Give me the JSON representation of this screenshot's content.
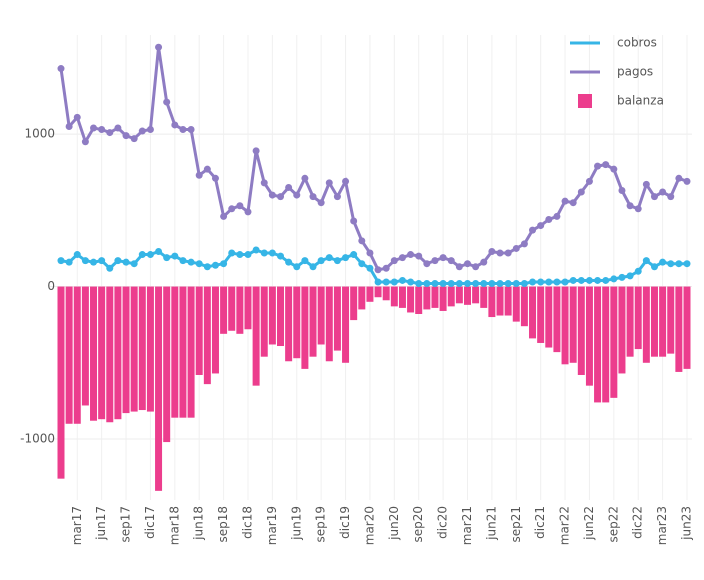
{
  "chart_data": {
    "type": "combo",
    "categories": [
      null,
      null,
      "mar17",
      null,
      null,
      "jun17",
      null,
      null,
      "sep17",
      null,
      null,
      "dic17",
      null,
      null,
      "mar18",
      null,
      null,
      "jun18",
      null,
      null,
      "sep18",
      null,
      null,
      "dic18",
      null,
      null,
      "mar19",
      null,
      null,
      "jun19",
      null,
      null,
      "sep19",
      null,
      null,
      "dic19",
      null,
      null,
      "mar20",
      null,
      null,
      "jun20",
      null,
      null,
      "sep20",
      null,
      null,
      "dic20",
      null,
      null,
      "mar21",
      null,
      null,
      "jun21",
      null,
      null,
      "sep21",
      null,
      null,
      "dic21",
      null,
      null,
      "mar22",
      null,
      null,
      "jun22",
      null,
      null,
      "sep22",
      null,
      null,
      "dic22",
      null,
      null,
      "mar23",
      null,
      null,
      "jun23"
    ],
    "series": [
      {
        "name": "cobros",
        "type": "line",
        "color": "#36b5e6",
        "values": [
          170,
          160,
          210,
          170,
          160,
          170,
          120,
          170,
          160,
          150,
          210,
          210,
          230,
          190,
          200,
          170,
          160,
          150,
          130,
          140,
          150,
          220,
          210,
          210,
          240,
          220,
          220,
          200,
          160,
          130,
          170,
          130,
          170,
          190,
          170,
          190,
          210,
          150,
          120,
          30,
          30,
          30,
          40,
          30,
          20,
          20,
          20,
          20,
          20,
          20,
          20,
          20,
          20,
          20,
          20,
          20,
          20,
          20,
          30,
          30,
          30,
          30,
          30,
          40,
          40,
          40,
          40,
          40,
          50,
          60,
          70,
          100,
          170,
          130,
          160,
          150,
          150,
          150
        ]
      },
      {
        "name": "pagos",
        "type": "line",
        "color": "#8e7cc3",
        "values": [
          1430,
          1050,
          1110,
          950,
          1040,
          1030,
          1010,
          1040,
          990,
          970,
          1020,
          1030,
          1570,
          1210,
          1060,
          1030,
          1030,
          730,
          770,
          710,
          460,
          510,
          530,
          490,
          890,
          680,
          600,
          590,
          650,
          600,
          710,
          590,
          550,
          680,
          590,
          690,
          430,
          300,
          220,
          110,
          120,
          170,
          190,
          210,
          200,
          150,
          170,
          190,
          170,
          130,
          150,
          130,
          160,
          230,
          220,
          220,
          250,
          280,
          370,
          400,
          440,
          460,
          560,
          550,
          620,
          690,
          790,
          800,
          770,
          630,
          530,
          510,
          670,
          590,
          620,
          590,
          710,
          690
        ]
      },
      {
        "name": "balanza",
        "type": "bar",
        "color": "#ec3d8d",
        "values": [
          -1260,
          -900,
          -900,
          -780,
          -880,
          -870,
          -890,
          -870,
          -830,
          -820,
          -810,
          -820,
          -1340,
          -1020,
          -860,
          -860,
          -860,
          -580,
          -640,
          -570,
          -310,
          -290,
          -310,
          -280,
          -650,
          -460,
          -380,
          -390,
          -490,
          -470,
          -540,
          -460,
          -380,
          -490,
          -420,
          -500,
          -220,
          -150,
          -100,
          -70,
          -90,
          -130,
          -140,
          -170,
          -180,
          -150,
          -140,
          -160,
          -130,
          -110,
          -120,
          -110,
          -140,
          -200,
          -190,
          -190,
          -230,
          -260,
          -340,
          -370,
          -400,
          -430,
          -510,
          -500,
          -580,
          -650,
          -760,
          -760,
          -730,
          -570,
          -460,
          -410,
          -500,
          -460,
          -460,
          -440,
          -560,
          -540
        ]
      }
    ],
    "ylim": [
      -1400,
      1650
    ],
    "yticks": [
      -1000,
      0,
      1000
    ],
    "grid": true,
    "legend": "top-right"
  }
}
